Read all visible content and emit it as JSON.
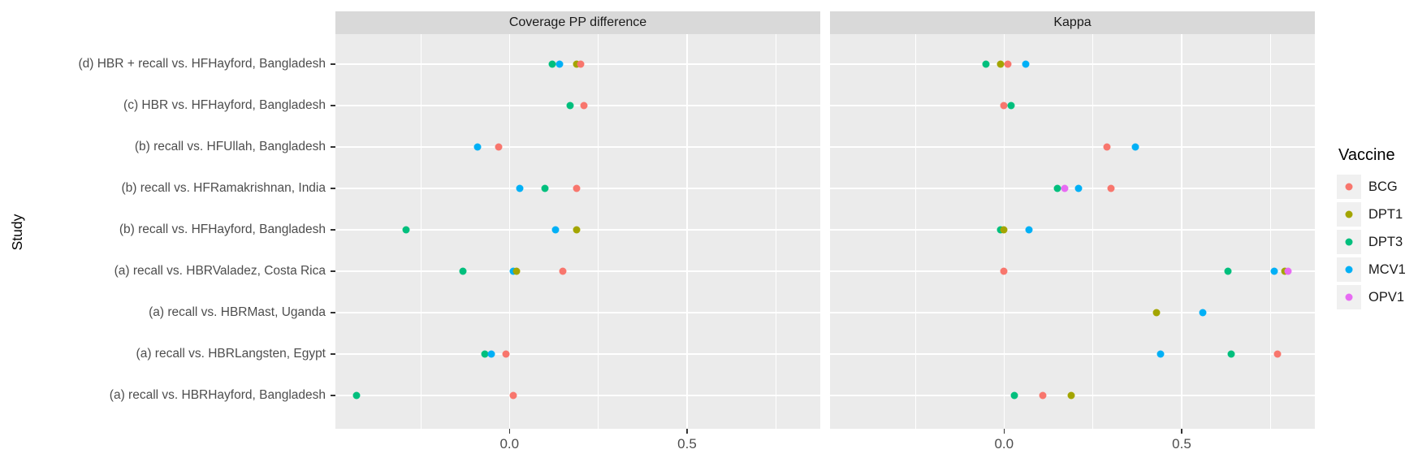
{
  "colors": {
    "panel_bg": "#EBEBEB",
    "strip_bg": "#D9D9D9",
    "gridline": "#FFFFFF",
    "axis_text": "#4D4D4D",
    "tick_mark": "#333333"
  },
  "chart_data": {
    "type": "scatter",
    "title": "",
    "facets": [
      {
        "label": "Coverage PP difference"
      },
      {
        "label": "Kappa"
      }
    ],
    "x_axis": {
      "range": [
        -0.49,
        0.875
      ],
      "ticks": [
        0.0,
        0.5
      ],
      "tick_labels": [
        "0.0",
        "0.5"
      ],
      "minor_ticks": [
        -0.25,
        0.25,
        0.75
      ],
      "grid": true
    },
    "y_axis": {
      "title": "Study",
      "categories": [
        "(d) HBR + recall vs. HFHayford, Bangladesh",
        "(c) HBR vs. HFHayford, Bangladesh",
        "(b) recall vs. HFUllah, Bangladesh",
        "(b) recall vs. HFRamakrishnan, India",
        "(b) recall vs. HFHayford, Bangladesh",
        "(a) recall vs. HBRValadez, Costa Rica",
        "(a) recall vs. HBRMast, Uganda",
        "(a) recall vs. HBRLangsten, Egypt",
        "(a) recall vs. HBRHayford, Bangladesh"
      ]
    },
    "legend": {
      "title": "Vaccine",
      "position": "right",
      "entries": [
        {
          "label": "BCG",
          "color": "#F8766D"
        },
        {
          "label": "DPT1",
          "color": "#A3A500"
        },
        {
          "label": "DPT3",
          "color": "#00BF7D"
        },
        {
          "label": "MCV1",
          "color": "#00B0F6"
        },
        {
          "label": "OPV1",
          "color": "#E76BF3"
        }
      ]
    },
    "points": [
      {
        "facet": "Coverage PP difference",
        "study": "(d) HBR + recall vs. HFHayford, Bangladesh",
        "values": [
          {
            "vaccine": "DPT3",
            "x": 0.12
          },
          {
            "vaccine": "MCV1",
            "x": 0.14
          },
          {
            "vaccine": "DPT1",
            "x": 0.19
          },
          {
            "vaccine": "BCG",
            "x": 0.2
          }
        ]
      },
      {
        "facet": "Coverage PP difference",
        "study": "(c) HBR vs. HFHayford, Bangladesh",
        "values": [
          {
            "vaccine": "DPT3",
            "x": 0.17
          },
          {
            "vaccine": "BCG",
            "x": 0.21
          }
        ]
      },
      {
        "facet": "Coverage PP difference",
        "study": "(b) recall vs. HFUllah, Bangladesh",
        "values": [
          {
            "vaccine": "MCV1",
            "x": -0.09
          },
          {
            "vaccine": "BCG",
            "x": -0.03
          }
        ]
      },
      {
        "facet": "Coverage PP difference",
        "study": "(b) recall vs. HFRamakrishnan, India",
        "values": [
          {
            "vaccine": "MCV1",
            "x": 0.03
          },
          {
            "vaccine": "DPT3",
            "x": 0.1
          },
          {
            "vaccine": "BCG",
            "x": 0.19
          }
        ]
      },
      {
        "facet": "Coverage PP difference",
        "study": "(b) recall vs. HFHayford, Bangladesh",
        "values": [
          {
            "vaccine": "DPT3",
            "x": -0.29
          },
          {
            "vaccine": "MCV1",
            "x": 0.13
          },
          {
            "vaccine": "DPT1",
            "x": 0.19
          }
        ]
      },
      {
        "facet": "Coverage PP difference",
        "study": "(a) recall vs. HBRValadez, Costa Rica",
        "values": [
          {
            "vaccine": "DPT3",
            "x": -0.13
          },
          {
            "vaccine": "MCV1",
            "x": 0.01
          },
          {
            "vaccine": "DPT1",
            "x": 0.02
          },
          {
            "vaccine": "BCG",
            "x": 0.15
          }
        ]
      },
      {
        "facet": "Coverage PP difference",
        "study": "(a) recall vs. HBRLangsten, Egypt",
        "values": [
          {
            "vaccine": "DPT3",
            "x": -0.07
          },
          {
            "vaccine": "MCV1",
            "x": -0.05
          },
          {
            "vaccine": "BCG",
            "x": -0.01
          }
        ]
      },
      {
        "facet": "Coverage PP difference",
        "study": "(a) recall vs. HBRHayford, Bangladesh",
        "values": [
          {
            "vaccine": "DPT3",
            "x": -0.43
          },
          {
            "vaccine": "BCG",
            "x": 0.01
          }
        ]
      },
      {
        "facet": "Kappa",
        "study": "(d) HBR + recall vs. HFHayford, Bangladesh",
        "values": [
          {
            "vaccine": "DPT3",
            "x": -0.05
          },
          {
            "vaccine": "DPT1",
            "x": -0.01
          },
          {
            "vaccine": "BCG",
            "x": 0.01
          },
          {
            "vaccine": "MCV1",
            "x": 0.06
          }
        ]
      },
      {
        "facet": "Kappa",
        "study": "(c) HBR vs. HFHayford, Bangladesh",
        "values": [
          {
            "vaccine": "BCG",
            "x": 0.0
          },
          {
            "vaccine": "DPT3",
            "x": 0.02
          }
        ]
      },
      {
        "facet": "Kappa",
        "study": "(b) recall vs. HFUllah, Bangladesh",
        "values": [
          {
            "vaccine": "BCG",
            "x": 0.29
          },
          {
            "vaccine": "MCV1",
            "x": 0.37
          }
        ]
      },
      {
        "facet": "Kappa",
        "study": "(b) recall vs. HFRamakrishnan, India",
        "values": [
          {
            "vaccine": "DPT3",
            "x": 0.15
          },
          {
            "vaccine": "OPV1",
            "x": 0.17
          },
          {
            "vaccine": "MCV1",
            "x": 0.21
          },
          {
            "vaccine": "BCG",
            "x": 0.3
          }
        ]
      },
      {
        "facet": "Kappa",
        "study": "(b) recall vs. HFHayford, Bangladesh",
        "values": [
          {
            "vaccine": "DPT3",
            "x": -0.01
          },
          {
            "vaccine": "DPT1",
            "x": 0.0
          },
          {
            "vaccine": "MCV1",
            "x": 0.07
          }
        ]
      },
      {
        "facet": "Kappa",
        "study": "(a) recall vs. HBRValadez, Costa Rica",
        "values": [
          {
            "vaccine": "BCG",
            "x": 0.0
          },
          {
            "vaccine": "DPT3",
            "x": 0.63
          },
          {
            "vaccine": "MCV1",
            "x": 0.76
          },
          {
            "vaccine": "DPT1",
            "x": 0.79
          },
          {
            "vaccine": "OPV1",
            "x": 0.8
          }
        ]
      },
      {
        "facet": "Kappa",
        "study": "(a) recall vs. HBRMast, Uganda",
        "values": [
          {
            "vaccine": "DPT1",
            "x": 0.43
          },
          {
            "vaccine": "MCV1",
            "x": 0.56
          }
        ]
      },
      {
        "facet": "Kappa",
        "study": "(a) recall vs. HBRLangsten, Egypt",
        "values": [
          {
            "vaccine": "MCV1",
            "x": 0.44
          },
          {
            "vaccine": "DPT3",
            "x": 0.64
          },
          {
            "vaccine": "BCG",
            "x": 0.77
          }
        ]
      },
      {
        "facet": "Kappa",
        "study": "(a) recall vs. HBRHayford, Bangladesh",
        "values": [
          {
            "vaccine": "DPT3",
            "x": 0.03
          },
          {
            "vaccine": "BCG",
            "x": 0.11
          },
          {
            "vaccine": "DPT1",
            "x": 0.19
          }
        ]
      }
    ]
  }
}
